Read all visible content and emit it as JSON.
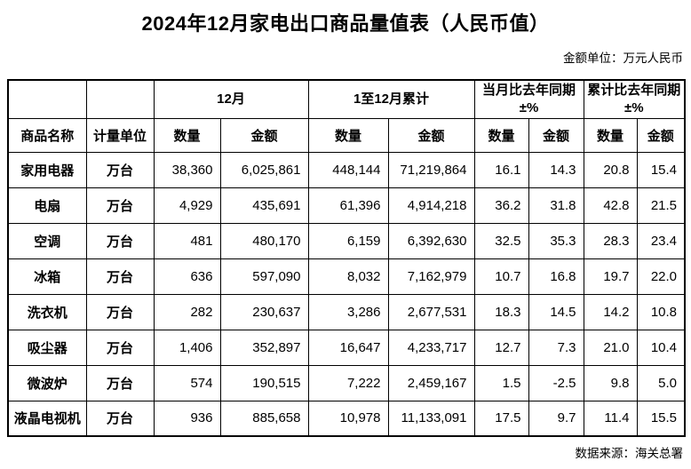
{
  "page": {
    "title": "2024年12月家电出口商品量值表（人民币值）",
    "unit_note": "金额单位：万元人民币",
    "source_note": "数据来源：海关总署"
  },
  "colors": {
    "text": "#000000",
    "border": "#000000",
    "background": "#ffffff"
  },
  "table": {
    "groups": [
      {
        "label": "12月",
        "sub": ""
      },
      {
        "label": "1至12月累计",
        "sub": ""
      },
      {
        "label": "当月比去年同期",
        "sub": "±%"
      },
      {
        "label": "累计比去年同期",
        "sub": "±%"
      }
    ],
    "col_headers": [
      "商品名称",
      "计量单位",
      "数量",
      "金额",
      "数量",
      "金额",
      "数量",
      "金额",
      "数量",
      "金额"
    ],
    "rows": [
      {
        "name": "家用电器",
        "unit": "万台",
        "values": [
          "38,360",
          "6,025,861",
          "448,144",
          "71,219,864",
          "16.1",
          "14.3",
          "20.8",
          "15.4"
        ]
      },
      {
        "name": "电扇",
        "unit": "万台",
        "values": [
          "4,929",
          "435,691",
          "61,396",
          "4,914,218",
          "36.2",
          "31.8",
          "42.8",
          "21.5"
        ]
      },
      {
        "name": "空调",
        "unit": "万台",
        "values": [
          "481",
          "480,170",
          "6,159",
          "6,392,630",
          "32.5",
          "35.3",
          "28.3",
          "23.4"
        ]
      },
      {
        "name": "冰箱",
        "unit": "万台",
        "values": [
          "636",
          "597,090",
          "8,032",
          "7,162,979",
          "10.7",
          "16.8",
          "19.7",
          "22.0"
        ]
      },
      {
        "name": "洗衣机",
        "unit": "万台",
        "values": [
          "282",
          "230,637",
          "3,286",
          "2,677,531",
          "18.3",
          "14.5",
          "14.2",
          "10.8"
        ]
      },
      {
        "name": "吸尘器",
        "unit": "万台",
        "values": [
          "1,406",
          "352,897",
          "16,647",
          "4,233,717",
          "12.7",
          "7.3",
          "21.0",
          "10.4"
        ]
      },
      {
        "name": "微波炉",
        "unit": "万台",
        "values": [
          "574",
          "190,515",
          "7,222",
          "2,459,167",
          "1.5",
          "-2.5",
          "9.8",
          "5.0"
        ]
      },
      {
        "name": "液晶电视机",
        "unit": "万台",
        "values": [
          "936",
          "885,658",
          "10,978",
          "11,133,091",
          "17.5",
          "9.7",
          "11.4",
          "15.5"
        ]
      }
    ]
  }
}
